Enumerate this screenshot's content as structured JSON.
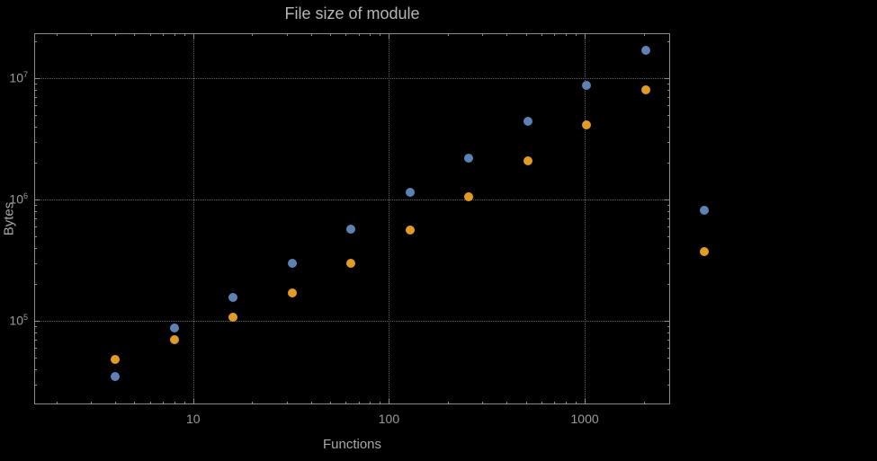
{
  "chart_data": {
    "type": "scatter",
    "title": "File size of module",
    "xlabel": "Functions",
    "ylabel": "Bytes",
    "x_scale": "log",
    "y_scale": "log",
    "grid": true,
    "legend": null,
    "frame": true,
    "x_range": [
      1.54,
      2730
    ],
    "y_range": [
      20500,
      23500000
    ],
    "x_ticks": [
      {
        "value": 10,
        "label": "10"
      },
      {
        "value": 100,
        "label": "100"
      },
      {
        "value": 1000,
        "label": "1000"
      }
    ],
    "y_ticks": [
      {
        "value": 100000,
        "label": "10^5"
      },
      {
        "value": 1000000,
        "label": "10^6"
      },
      {
        "value": 10000000,
        "label": "10^7"
      }
    ],
    "series": [
      {
        "name": "series-1",
        "color": "#5e81b5",
        "points": [
          [
            4,
            35000
          ],
          [
            8,
            88000
          ],
          [
            16,
            155000
          ],
          [
            32,
            300000
          ],
          [
            64,
            570000
          ],
          [
            128,
            1150000
          ],
          [
            256,
            2200000
          ],
          [
            512,
            4400000
          ],
          [
            1024,
            8800000
          ],
          [
            2048,
            17000000
          ],
          [
            4096,
            820000
          ]
        ]
      },
      {
        "name": "series-2",
        "color": "#e19c24",
        "points": [
          [
            4,
            48000
          ],
          [
            8,
            70000
          ],
          [
            16,
            108000
          ],
          [
            32,
            170000
          ],
          [
            64,
            300000
          ],
          [
            128,
            560000
          ],
          [
            256,
            1050000
          ],
          [
            512,
            2100000
          ],
          [
            1024,
            4100000
          ],
          [
            2048,
            8000000
          ],
          [
            4096,
            370000
          ]
        ]
      }
    ]
  }
}
